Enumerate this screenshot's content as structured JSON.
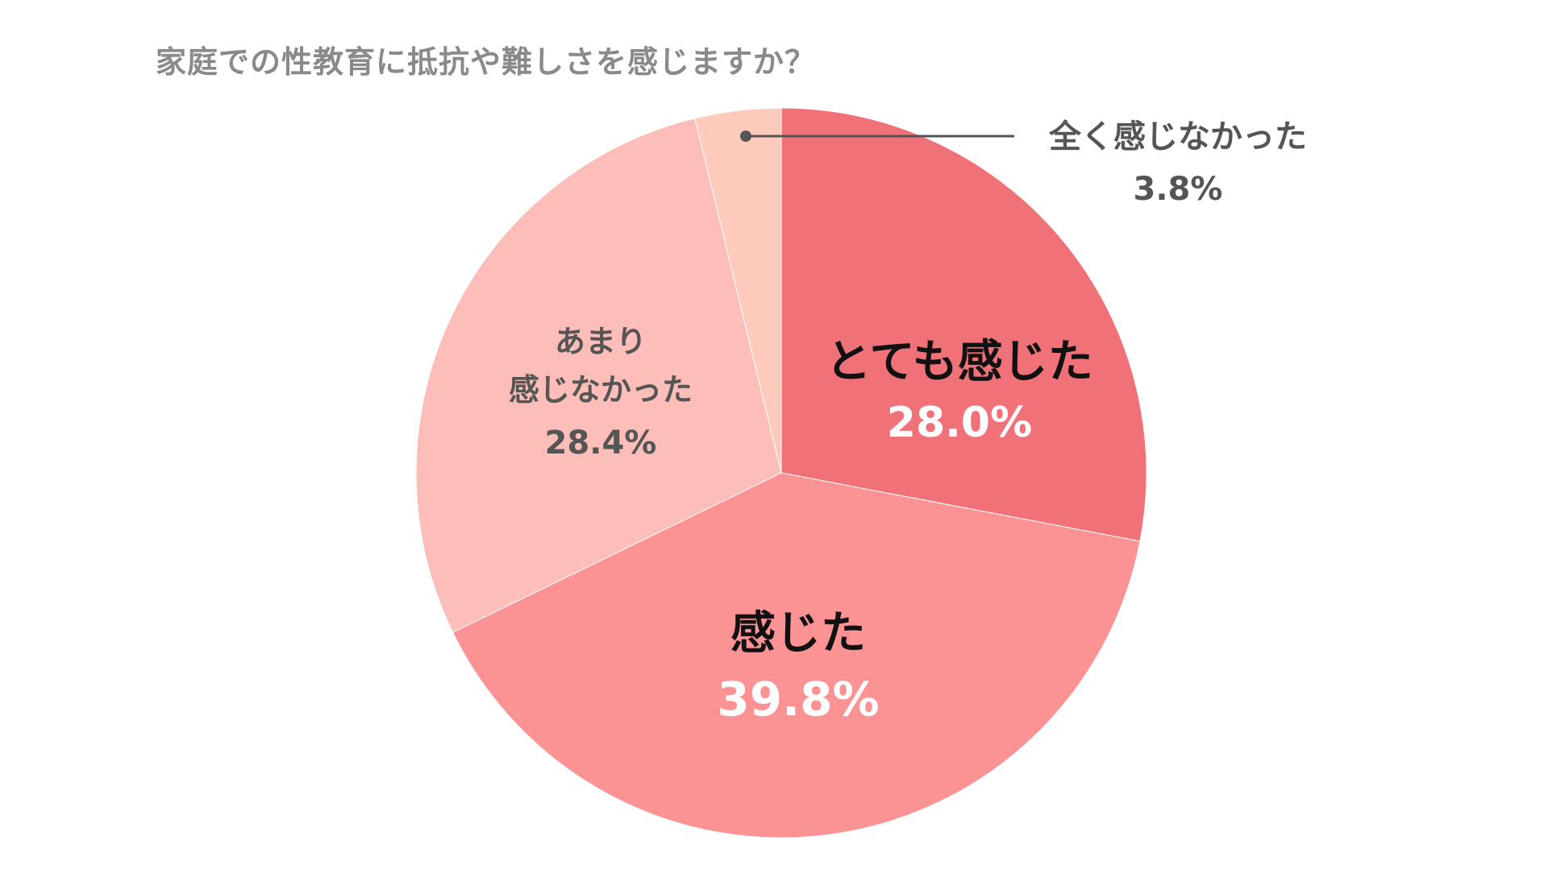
{
  "chart_data": {
    "type": "pie",
    "title": "家庭での性教育に抵抗や難しさを感じますか？",
    "slices": [
      {
        "label": "とても感じた",
        "value": 28.0,
        "value_label": "28.0%",
        "color": "#f07178",
        "label_color": "#111111",
        "value_color": "#ffffff"
      },
      {
        "label": "感じた",
        "value": 39.8,
        "value_label": "39.8%",
        "color": "#fb9294",
        "label_color": "#111111",
        "value_color": "#ffffff"
      },
      {
        "label": "あまり\n感じなかった",
        "value": 28.4,
        "value_label": "28.4%",
        "color": "#fdbdb8",
        "label_color": "#555555",
        "value_color": "#555555"
      },
      {
        "label": "全く感じなかった",
        "value": 3.8,
        "value_label": "3.8%",
        "color": "#fdcabb",
        "label_color": "#555555",
        "value_color": "#555555"
      }
    ],
    "start_angle_deg": 0,
    "direction": "clockwise",
    "legend": "none"
  }
}
